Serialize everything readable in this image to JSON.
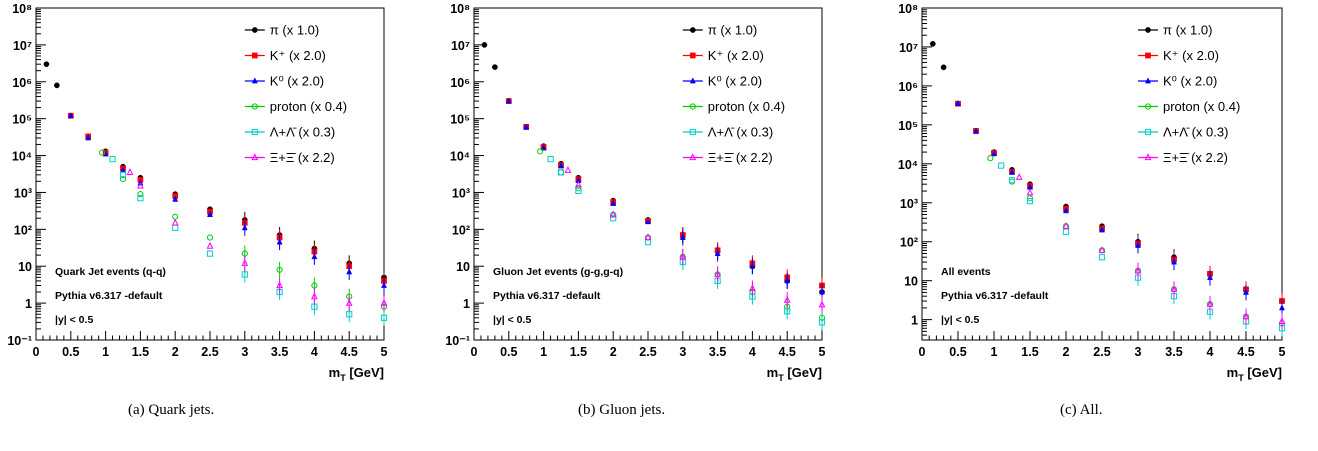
{
  "legend": [
    {
      "id": "pi",
      "label": "π (x 1.0)",
      "color": "#000000",
      "marker": "circle-filled"
    },
    {
      "id": "kplus",
      "label": "K⁺ (x 2.0)",
      "color": "#ff0000",
      "marker": "square-filled"
    },
    {
      "id": "k0",
      "label": "K⁰ (x 2.0)",
      "color": "#0000ff",
      "marker": "triangle-filled"
    },
    {
      "id": "proton",
      "label": "proton (x 0.4)",
      "color": "#00cc00",
      "marker": "circle-open"
    },
    {
      "id": "lambda",
      "label": "Λ+Λ̄ (x 0.3)",
      "color": "#00cccc",
      "marker": "square-open"
    },
    {
      "id": "xi",
      "label": "Ξ+Ξ̄ (x 2.2)",
      "color": "#ff00ff",
      "marker": "triangle-open"
    }
  ],
  "xtick_labels": [
    "0",
    "0.5",
    "1",
    "1.5",
    "2",
    "2.5",
    "3",
    "3.5",
    "4",
    "4.5",
    "5"
  ],
  "captions": [
    "(a)  Quark jets.",
    "(b)  Gluon jets.",
    "(c)  All."
  ],
  "chart_data": [
    {
      "type": "scatter",
      "xlabel": "m_T [GeV]",
      "xlim": [
        0,
        5
      ],
      "ylim": [
        0.1,
        100000000
      ],
      "yscale": "log",
      "ytick_labels": [
        "10⁻¹",
        "1",
        "10",
        "10²",
        "10³",
        "10⁴",
        "10⁵",
        "10⁶",
        "10⁷",
        "10⁸"
      ],
      "annotations": [
        "Quark Jet events (q-q)",
        "Pythia v6.317 -default",
        "|y| < 0.5"
      ],
      "series": [
        {
          "name": "π (x 1.0)",
          "x": [
            0.15,
            0.3,
            0.5,
            0.75,
            1.0,
            1.25,
            1.5,
            2.0,
            2.5,
            3.0,
            3.5,
            4.0,
            4.5,
            5.0
          ],
          "y": [
            3000000,
            800000,
            120000,
            33000,
            13000,
            5000,
            2500,
            900,
            350,
            180,
            70,
            30,
            12,
            5
          ]
        },
        {
          "name": "K⁺ (x 2.0)",
          "x": [
            0.5,
            0.75,
            1.0,
            1.25,
            1.5,
            2.0,
            2.5,
            3.0,
            3.5,
            4.0,
            4.5,
            5.0
          ],
          "y": [
            120000,
            33000,
            12000,
            4500,
            2200,
            800,
            300,
            150,
            60,
            25,
            10,
            4
          ]
        },
        {
          "name": "K⁰ (x 2.0)",
          "x": [
            0.5,
            0.75,
            1.0,
            1.25,
            1.5,
            2.0,
            2.5,
            3.0,
            3.5,
            4.0,
            4.5,
            5.0
          ],
          "y": [
            120000,
            30000,
            11000,
            4000,
            1800,
            650,
            250,
            110,
            45,
            18,
            7,
            3
          ]
        },
        {
          "name": "proton (x 0.4)",
          "x": [
            0.95,
            1.25,
            1.5,
            2.0,
            2.5,
            3.0,
            3.5,
            4.0,
            4.5,
            5.0
          ],
          "y": [
            12000,
            2300,
            900,
            220,
            60,
            22,
            8,
            3,
            1.5,
            0.8
          ]
        },
        {
          "name": "Λ+Λ̄ (x 0.3)",
          "x": [
            1.1,
            1.25,
            1.5,
            2.0,
            2.5,
            3.0,
            3.5,
            4.0,
            4.5,
            5.0
          ],
          "y": [
            8000,
            3000,
            700,
            110,
            22,
            6,
            2,
            0.8,
            0.5,
            0.4
          ]
        },
        {
          "name": "Ξ+Ξ̄ (x 2.2)",
          "x": [
            1.35,
            1.5,
            2.0,
            2.5,
            3.0,
            3.5,
            4.0,
            4.5,
            5.0
          ],
          "y": [
            3500,
            1500,
            150,
            35,
            12,
            3,
            1.5,
            1.0,
            1.0
          ]
        }
      ]
    },
    {
      "type": "scatter",
      "xlabel": "m_T [GeV]",
      "xlim": [
        0,
        5
      ],
      "ylim": [
        0.1,
        100000000
      ],
      "yscale": "log",
      "ytick_labels": [
        "10⁻¹",
        "1",
        "10",
        "10²",
        "10³",
        "10⁴",
        "10⁵",
        "10⁶",
        "10⁷",
        "10⁸"
      ],
      "annotations": [
        "Gluon Jet events (g-g,g-q)",
        "Pythia v6.317 -default",
        "|y| < 0.5"
      ],
      "series": [
        {
          "name": "π (x 1.0)",
          "x": [
            0.15,
            0.3,
            0.5,
            0.75,
            1.0,
            1.25,
            1.5,
            2.0,
            2.5,
            3.0,
            3.5,
            4.0,
            4.5,
            5.0
          ],
          "y": [
            10000000,
            2500000,
            300000,
            60000,
            18000,
            6000,
            2500,
            600,
            180,
            70,
            25,
            10,
            4,
            2
          ]
        },
        {
          "name": "K⁺ (x 2.0)",
          "x": [
            0.5,
            0.75,
            1.0,
            1.25,
            1.5,
            2.0,
            2.5,
            3.0,
            3.5,
            4.0,
            4.5,
            5.0
          ],
          "y": [
            300000,
            60000,
            17000,
            5500,
            2300,
            550,
            170,
            70,
            27,
            12,
            5,
            3
          ]
        },
        {
          "name": "K⁰ (x 2.0)",
          "x": [
            0.5,
            0.75,
            1.0,
            1.25,
            1.5,
            2.0,
            2.5,
            3.0,
            3.5,
            4.0,
            4.5,
            5.0
          ],
          "y": [
            300000,
            58000,
            16000,
            5200,
            2100,
            500,
            160,
            60,
            22,
            10,
            4,
            2
          ]
        },
        {
          "name": "proton (x 0.4)",
          "x": [
            0.95,
            1.25,
            1.5,
            2.0,
            2.5,
            3.0,
            3.5,
            4.0,
            4.5,
            5.0
          ],
          "y": [
            13000,
            3500,
            1300,
            250,
            60,
            18,
            6,
            2,
            0.8,
            0.4
          ]
        },
        {
          "name": "Λ+Λ̄ (x 0.3)",
          "x": [
            1.1,
            1.25,
            1.5,
            2.0,
            2.5,
            3.0,
            3.5,
            4.0,
            4.5,
            5.0
          ],
          "y": [
            8000,
            3500,
            1100,
            200,
            45,
            13,
            4,
            1.5,
            0.6,
            0.3
          ]
        },
        {
          "name": "Ξ+Ξ̄ (x 2.2)",
          "x": [
            1.35,
            1.5,
            2.0,
            2.5,
            3.0,
            3.5,
            4.0,
            4.5,
            5.0
          ],
          "y": [
            4000,
            1600,
            250,
            60,
            18,
            6,
            2.5,
            1.2,
            0.9
          ]
        }
      ]
    },
    {
      "type": "scatter",
      "xlabel": "m_T [GeV]",
      "xlim": [
        0,
        5
      ],
      "ylim": [
        0.3,
        100000000
      ],
      "yscale": "log",
      "ytick_labels": [
        "1",
        "10",
        "10²",
        "10³",
        "10⁴",
        "10⁵",
        "10⁶",
        "10⁷",
        "10⁸"
      ],
      "annotations": [
        "All events",
        "Pythia v6.317 -default",
        "|y| < 0.5"
      ],
      "series": [
        {
          "name": "π (x 1.0)",
          "x": [
            0.15,
            0.3,
            0.5,
            0.75,
            1.0,
            1.25,
            1.5,
            2.0,
            2.5,
            3.0,
            3.5,
            4.0,
            4.5,
            5.0
          ],
          "y": [
            12000000,
            3000000,
            350000,
            70000,
            20000,
            7000,
            3000,
            800,
            250,
            100,
            40,
            15,
            6,
            3
          ]
        },
        {
          "name": "K⁺ (x 2.0)",
          "x": [
            0.5,
            0.75,
            1.0,
            1.25,
            1.5,
            2.0,
            2.5,
            3.0,
            3.5,
            4.0,
            4.5,
            5.0
          ],
          "y": [
            350000,
            70000,
            19000,
            6300,
            2700,
            700,
            220,
            90,
            35,
            15,
            6,
            3
          ]
        },
        {
          "name": "K⁰ (x 2.0)",
          "x": [
            0.5,
            0.75,
            1.0,
            1.25,
            1.5,
            2.0,
            2.5,
            3.0,
            3.5,
            4.0,
            4.5,
            5.0
          ],
          "y": [
            350000,
            68000,
            18000,
            6000,
            2500,
            620,
            200,
            80,
            30,
            12,
            5,
            2
          ]
        },
        {
          "name": "proton (x 0.4)",
          "x": [
            0.95,
            1.25,
            1.5,
            2.0,
            2.5,
            3.0,
            3.5,
            4.0,
            4.5,
            5.0
          ],
          "y": [
            14000,
            3500,
            1300,
            250,
            60,
            18,
            6,
            2.5,
            1.2,
            0.8
          ]
        },
        {
          "name": "Λ+Λ̄ (x 0.3)",
          "x": [
            1.1,
            1.25,
            1.5,
            2.0,
            2.5,
            3.0,
            3.5,
            4.0,
            4.5,
            5.0
          ],
          "y": [
            9000,
            3800,
            1100,
            180,
            40,
            12,
            4,
            1.6,
            0.9,
            0.6
          ]
        },
        {
          "name": "Ξ+Ξ̄ (x 2.2)",
          "x": [
            1.35,
            1.5,
            2.0,
            2.5,
            3.0,
            3.5,
            4.0,
            4.5,
            5.0
          ],
          "y": [
            4500,
            1800,
            250,
            60,
            18,
            6,
            2.5,
            1.2,
            0.9
          ]
        }
      ]
    }
  ]
}
